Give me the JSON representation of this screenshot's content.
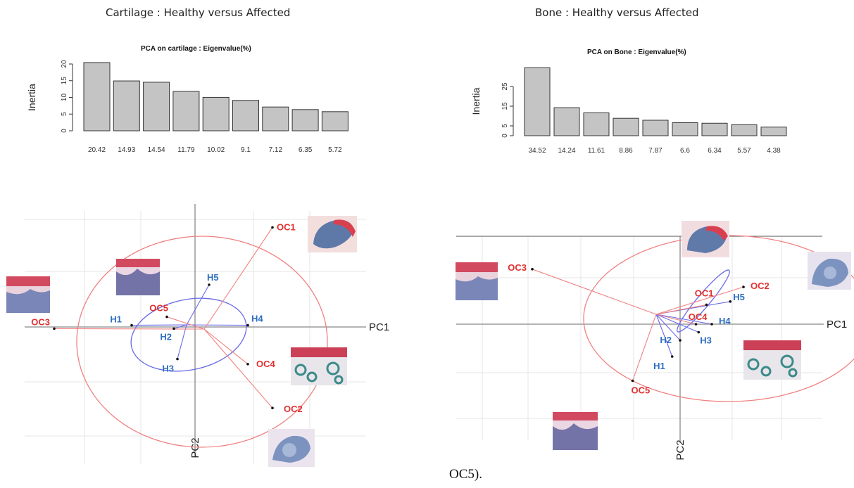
{
  "page": {
    "caption": "OC5)."
  },
  "chart_data": [
    {
      "type": "bar",
      "section_title": "Cartilage : Healthy versus Affected",
      "title": "PCA on cartilage : Eigenvalue(%)",
      "ylabel": "Inertia",
      "ylim": [
        0,
        20
      ],
      "yticks": [
        0,
        5,
        10,
        15,
        20
      ],
      "categories": [
        "20.42",
        "14.93",
        "14.54",
        "11.79",
        "10.02",
        "9.1",
        "7.12",
        "6.35",
        "5.72"
      ],
      "values": [
        20.42,
        14.93,
        14.54,
        11.79,
        10.02,
        9.1,
        7.12,
        6.35,
        5.72
      ],
      "bar_color": "#c4c4c4"
    },
    {
      "type": "bar",
      "section_title": "Bone : Healthy versus Affected",
      "title": "PCA on Bone : Eigenvalue(%)",
      "ylabel": "Inertia",
      "ylim": [
        0,
        35
      ],
      "yticks": [
        0,
        5,
        15,
        25
      ],
      "categories": [
        "34.52",
        "14.24",
        "11.61",
        "8.86",
        "7.87",
        "6.6",
        "6.34",
        "5.57",
        "4.38"
      ],
      "values": [
        34.52,
        14.24,
        11.61,
        8.86,
        7.87,
        6.6,
        6.34,
        5.57,
        4.38
      ],
      "bar_color": "#c4c4c4"
    },
    {
      "type": "scatter",
      "panel": "cartilage",
      "xlabel": "PC1",
      "ylabel": "PC2",
      "groups": [
        {
          "group": "healthy",
          "color": "#2f6fc0",
          "ellipse_color": "#6a6ae8",
          "points": [
            {
              "label": "H1",
              "x": -0.9,
              "y": 0.05
            },
            {
              "label": "H2",
              "x": -0.3,
              "y": -0.05
            },
            {
              "label": "H3",
              "x": -0.25,
              "y": -0.95
            },
            {
              "label": "H4",
              "x": 0.75,
              "y": 0.05
            },
            {
              "label": "H5",
              "x": 0.2,
              "y": 1.25
            }
          ]
        },
        {
          "group": "affected",
          "color": "#e03030",
          "ellipse_color": "#f08080",
          "points": [
            {
              "label": "OC1",
              "x": 1.1,
              "y": 2.95
            },
            {
              "label": "OC2",
              "x": 1.1,
              "y": -2.4
            },
            {
              "label": "OC3",
              "x": -2.0,
              "y": -0.05
            },
            {
              "label": "OC4",
              "x": 0.75,
              "y": -1.1
            },
            {
              "label": "OC5",
              "x": -0.4,
              "y": 0.3
            }
          ]
        }
      ]
    },
    {
      "type": "scatter",
      "panel": "bone",
      "xlabel": "PC1",
      "ylabel": "PC2",
      "groups": [
        {
          "group": "healthy",
          "color": "#2f6fc0",
          "ellipse_color": "#6a6ae8",
          "points": [
            {
              "label": "H1",
              "x": -0.15,
              "y": -1.0
            },
            {
              "label": "H2",
              "x": 0.0,
              "y": -0.5
            },
            {
              "label": "H3",
              "x": 0.35,
              "y": -0.25
            },
            {
              "label": "H4",
              "x": 0.6,
              "y": 0.0
            },
            {
              "label": "H5",
              "x": 0.95,
              "y": 0.7
            }
          ]
        },
        {
          "group": "affected",
          "color": "#e03030",
          "ellipse_color": "#f08080",
          "points": [
            {
              "label": "OC1",
              "x": 0.5,
              "y": 0.6
            },
            {
              "label": "OC2",
              "x": 1.2,
              "y": 1.15
            },
            {
              "label": "OC3",
              "x": -2.8,
              "y": 1.7
            },
            {
              "label": "OC4",
              "x": 0.3,
              "y": 0.0
            },
            {
              "label": "OC5",
              "x": -0.9,
              "y": -1.75
            }
          ]
        }
      ]
    }
  ]
}
